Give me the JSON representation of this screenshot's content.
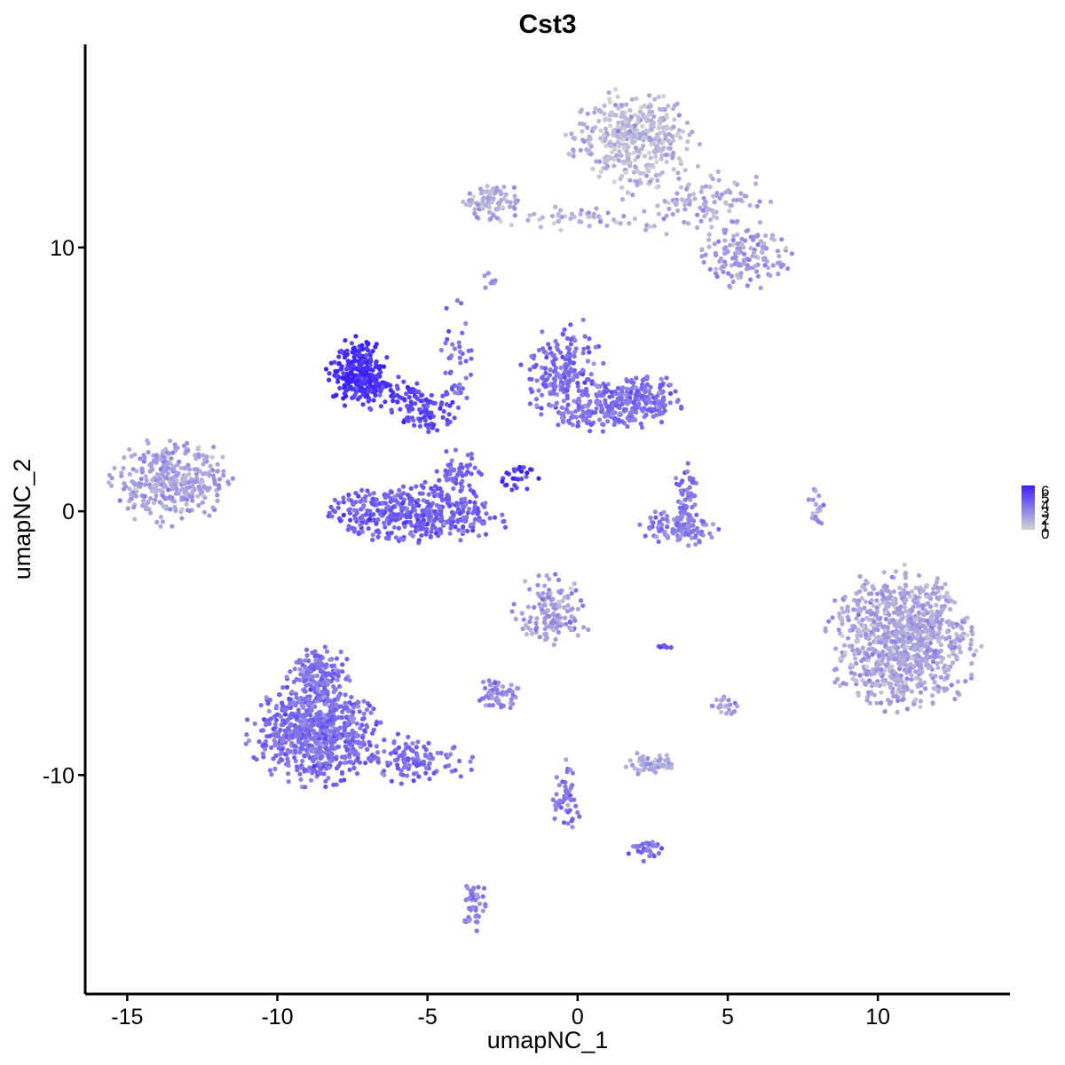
{
  "chart_data": {
    "type": "scatter",
    "title": "Cst3",
    "xlabel": "umapNC_1",
    "ylabel": "umapNC_2",
    "xlim": [
      -16.4,
      14.4
    ],
    "ylim": [
      -18.3,
      17.7
    ],
    "x_ticks": [
      -15,
      -10,
      -5,
      0,
      5,
      10
    ],
    "x_tick_labels": [
      "-15",
      "-10",
      "-5",
      "0",
      "5",
      "10"
    ],
    "y_ticks": [
      -10,
      0,
      10
    ],
    "y_tick_labels": [
      "-10",
      "0",
      "10"
    ],
    "grid": false,
    "legend": {
      "placement": "right",
      "type": "colorbar",
      "min": 0,
      "max": 6,
      "labels": [
        "6",
        "5",
        "4",
        "3",
        "2",
        "1",
        "0"
      ],
      "low_color": "#d3d3d3",
      "high_color": "#3a1fff"
    },
    "clusters": [
      {
        "cx": 1.8,
        "cy": 14.2,
        "sx": 0.95,
        "sy": 0.8,
        "n": 380,
        "expr": 0.9
      },
      {
        "cx": 4.0,
        "cy": 11.8,
        "sx": 1.2,
        "sy": 0.6,
        "n": 120,
        "expr": 1.3
      },
      {
        "cx": 5.5,
        "cy": 9.7,
        "sx": 0.7,
        "sy": 0.55,
        "n": 140,
        "expr": 1.8
      },
      {
        "cx": -2.8,
        "cy": 11.7,
        "sx": 0.45,
        "sy": 0.35,
        "n": 90,
        "expr": 1.2
      },
      {
        "cx": -0.3,
        "cy": 11.1,
        "sx": 1.1,
        "sy": 0.2,
        "n": 45,
        "expr": 1.4
      },
      {
        "cx": -13.5,
        "cy": 1.1,
        "sx": 0.9,
        "sy": 0.7,
        "n": 330,
        "expr": 1.6
      },
      {
        "cx": -7.3,
        "cy": 5.3,
        "sx": 0.45,
        "sy": 0.6,
        "n": 250,
        "expr": 5.6
      },
      {
        "cx": -5.1,
        "cy": 3.8,
        "sx": 0.55,
        "sy": 0.35,
        "n": 90,
        "expr": 4.5
      },
      {
        "cx": -6.4,
        "cy": 4.5,
        "sx": 0.6,
        "sy": 0.3,
        "n": 60,
        "expr": 5.0
      },
      {
        "cx": -5.5,
        "cy": -0.1,
        "sx": 1.4,
        "sy": 0.5,
        "n": 420,
        "expr": 3.8
      },
      {
        "cx": -4.0,
        "cy": 1.2,
        "sx": 0.35,
        "sy": 0.5,
        "n": 70,
        "expr": 3.6
      },
      {
        "cx": -0.5,
        "cy": 5.2,
        "sx": 0.6,
        "sy": 0.8,
        "n": 200,
        "expr": 3.4
      },
      {
        "cx": 1.9,
        "cy": 4.2,
        "sx": 0.7,
        "sy": 0.45,
        "n": 220,
        "expr": 3.3
      },
      {
        "cx": 0.4,
        "cy": 3.7,
        "sx": 0.7,
        "sy": 0.3,
        "n": 80,
        "expr": 3.2
      },
      {
        "cx": -1.9,
        "cy": 1.3,
        "sx": 0.35,
        "sy": 0.25,
        "n": 25,
        "expr": 5.0
      },
      {
        "cx": -4.0,
        "cy": 6.0,
        "sx": 0.25,
        "sy": 1.0,
        "n": 40,
        "expr": 3.5
      },
      {
        "cx": 3.4,
        "cy": -0.6,
        "sx": 0.55,
        "sy": 0.3,
        "n": 120,
        "expr": 2.7
      },
      {
        "cx": 3.6,
        "cy": 0.6,
        "sx": 0.2,
        "sy": 0.6,
        "n": 50,
        "expr": 3.0
      },
      {
        "cx": 10.8,
        "cy": -4.9,
        "sx": 1.1,
        "sy": 1.2,
        "n": 950,
        "expr": 1.5
      },
      {
        "cx": -0.9,
        "cy": -3.8,
        "sx": 0.6,
        "sy": 0.6,
        "n": 140,
        "expr": 1.9
      },
      {
        "cx": -8.8,
        "cy": -8.4,
        "sx": 0.95,
        "sy": 0.85,
        "n": 700,
        "expr": 3.4
      },
      {
        "cx": -8.6,
        "cy": -6.2,
        "sx": 0.45,
        "sy": 0.5,
        "n": 150,
        "expr": 3.2
      },
      {
        "cx": -5.5,
        "cy": -9.4,
        "sx": 0.9,
        "sy": 0.4,
        "n": 120,
        "expr": 3.5
      },
      {
        "cx": -2.6,
        "cy": -6.9,
        "sx": 0.35,
        "sy": 0.25,
        "n": 55,
        "expr": 2.4
      },
      {
        "cx": 2.4,
        "cy": -9.6,
        "sx": 0.35,
        "sy": 0.2,
        "n": 60,
        "expr": 1.4
      },
      {
        "cx": -0.4,
        "cy": -11.0,
        "sx": 0.2,
        "sy": 0.7,
        "n": 50,
        "expr": 3.1
      },
      {
        "cx": 2.3,
        "cy": -12.8,
        "sx": 0.3,
        "sy": 0.2,
        "n": 30,
        "expr": 3.3
      },
      {
        "cx": -3.5,
        "cy": -15.0,
        "sx": 0.2,
        "sy": 0.5,
        "n": 45,
        "expr": 2.6
      },
      {
        "cx": 5.0,
        "cy": -7.4,
        "sx": 0.3,
        "sy": 0.2,
        "n": 20,
        "expr": 1.8
      },
      {
        "cx": 7.9,
        "cy": 0.2,
        "sx": 0.12,
        "sy": 0.45,
        "n": 18,
        "expr": 2.1
      },
      {
        "cx": -2.9,
        "cy": 8.7,
        "sx": 0.15,
        "sy": 0.15,
        "n": 8,
        "expr": 2.5
      },
      {
        "cx": 2.9,
        "cy": -5.1,
        "sx": 0.15,
        "sy": 0.08,
        "n": 8,
        "expr": 4.0
      }
    ]
  }
}
